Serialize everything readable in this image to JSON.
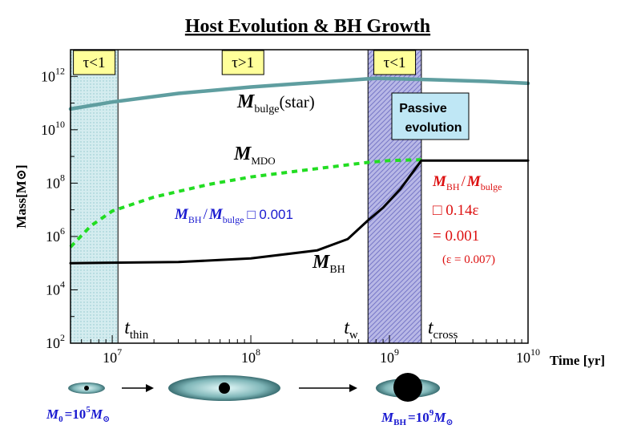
{
  "chart_data": {
    "type": "line",
    "title": "Host Evolution & BH Growth",
    "xlabel": "Time [yr]",
    "ylabel": "Mass[M⊙]",
    "x_scale": "log",
    "y_scale": "log",
    "xlim": [
      5000000,
      10000000000
    ],
    "ylim": [
      100,
      10000000000000
    ],
    "x_ticks": [
      {
        "value": 10000000,
        "base": "10",
        "exp": "7"
      },
      {
        "value": 100000000,
        "base": "10",
        "exp": "8"
      },
      {
        "value": 1000000000,
        "base": "10",
        "exp": "9"
      },
      {
        "value": 10000000000,
        "base": "10",
        "exp": "10"
      }
    ],
    "y_ticks": [
      {
        "value": 100,
        "base": "10",
        "exp": "2"
      },
      {
        "value": 10000,
        "base": "10",
        "exp": "4"
      },
      {
        "value": 1000000,
        "base": "10",
        "exp": "6"
      },
      {
        "value": 100000000,
        "base": "10",
        "exp": "8"
      },
      {
        "value": 10000000000,
        "base": "10",
        "exp": "10"
      },
      {
        "value": 1000000000000,
        "base": "10",
        "exp": "12"
      }
    ],
    "series": [
      {
        "name": "M_bulge (star)",
        "color": "#5f9ea0",
        "style": "solid",
        "points": [
          [
            5000000,
            60000000000
          ],
          [
            10000000,
            110000000000
          ],
          [
            30000000,
            230000000000
          ],
          [
            100000000,
            400000000000
          ],
          [
            300000000,
            600000000000
          ],
          [
            800000000,
            850000000000
          ],
          [
            2000000000,
            750000000000
          ],
          [
            5000000000,
            650000000000
          ],
          [
            10000000000,
            550000000000
          ]
        ]
      },
      {
        "name": "M_MDO",
        "color": "#22dd22",
        "style": "dashed",
        "points": [
          [
            5000000,
            400000
          ],
          [
            7000000,
            2500000
          ],
          [
            10000000,
            9000000
          ],
          [
            20000000,
            30000000
          ],
          [
            50000000,
            90000000
          ],
          [
            100000000,
            170000000
          ],
          [
            300000000,
            350000000
          ],
          [
            700000000,
            600000000
          ],
          [
            1000000000,
            700000000
          ],
          [
            1700000000,
            750000000
          ]
        ]
      },
      {
        "name": "M_BH",
        "color": "#000000",
        "style": "solid",
        "points": [
          [
            5000000,
            100000
          ],
          [
            30000000,
            110000
          ],
          [
            100000000,
            150000
          ],
          [
            300000000,
            300000
          ],
          [
            500000000,
            800000
          ],
          [
            700000000,
            4000000
          ],
          [
            900000000,
            12000000
          ],
          [
            1200000000,
            60000000
          ],
          [
            1700000000,
            700000000
          ],
          [
            10000000000,
            700000000
          ]
        ]
      }
    ],
    "regions": [
      {
        "x0": 5000000,
        "x1": 11000000,
        "fill": "#d6eef0",
        "pattern": "dots",
        "label": "τ<1"
      },
      {
        "x0": 11000000,
        "x1": 700000000,
        "fill": "none",
        "pattern": "none",
        "label": "τ>1"
      },
      {
        "x0": 700000000,
        "x1": 1700000000,
        "fill": "#b4b4e4",
        "pattern": "hatch",
        "label": "τ<1"
      }
    ],
    "vlines": [
      {
        "x": 11000000,
        "label": "t",
        "sub": "thin"
      },
      {
        "x": 700000000,
        "label": "t",
        "sub": "w"
      },
      {
        "x": 1700000000,
        "label": "t",
        "sub": "cross"
      }
    ],
    "annotations": {
      "bulge_label": {
        "main": "M",
        "sub": "bulge",
        "rest": "(star)"
      },
      "mdo_label": {
        "main": "M",
        "sub": "MDO"
      },
      "bh_label": {
        "main": "M",
        "sub": "BH"
      },
      "passive_box": [
        "Passive",
        "evolution"
      ],
      "ratio_blue": {
        "m1": "M",
        "s1": "BH",
        "slash": "/",
        "m2": "M",
        "s2": "bulge",
        "box": "□",
        "value": "0.001"
      },
      "ratio_red": {
        "m1": "M",
        "s1": "BH",
        "slash": "/",
        "m2": "M",
        "s2": "bulge",
        "line2": "□ 0.14ε",
        "line3": "= 0.001",
        "line4": "(ε = 0.007)"
      }
    },
    "bottom_labels": {
      "left": {
        "m": "M",
        "sub": "0",
        "eq": "=10",
        "exp": "5",
        "unit": "M",
        "unit_sub": "⊙"
      },
      "right": {
        "m": "M",
        "sub": "BH",
        "eq": "=10",
        "exp": "9",
        "unit": "M",
        "unit_sub": "⊙"
      }
    }
  }
}
